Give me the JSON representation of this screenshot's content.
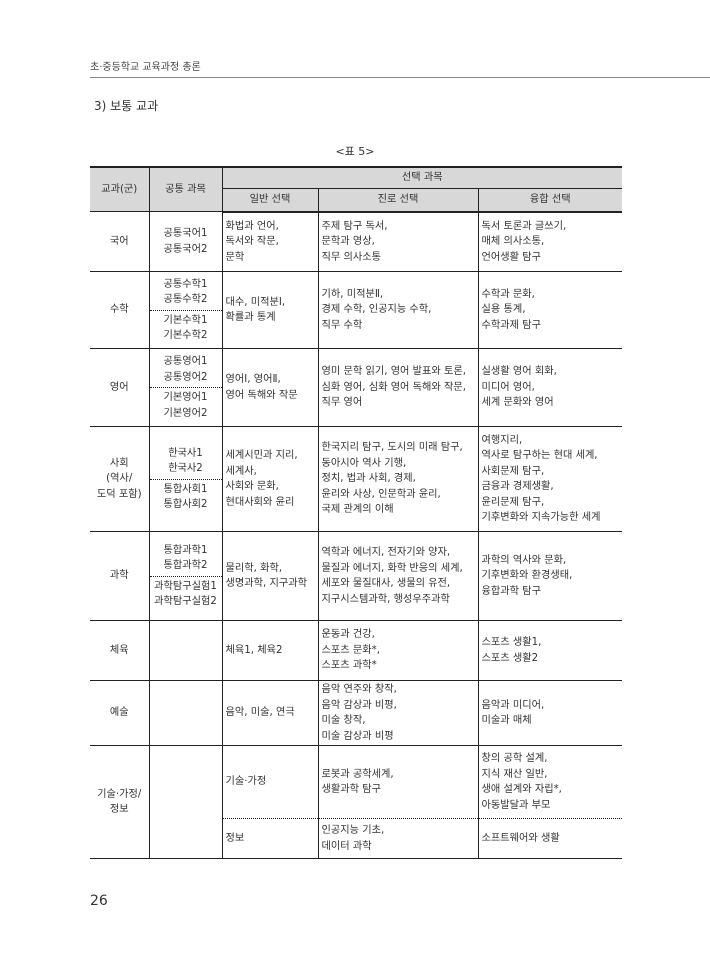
{
  "running_header": "초·중등학교 교육과정 총론",
  "section_title": "3) 보통 교과",
  "table_caption": "<표 5>",
  "table": {
    "headers": {
      "subject": "교과(군)",
      "common": "공통 과목",
      "elective": "선택 과목",
      "general": "일반 선택",
      "career": "진로 선택",
      "fusion": "융합 선택"
    },
    "rows": [
      {
        "subject": [
          "국어"
        ],
        "common": [
          [
            "공통국어1",
            "공통국어2"
          ]
        ],
        "general": [
          "화법과 언어,",
          "독서와 작문,",
          "문학"
        ],
        "career": [
          "주제 탐구 독서,",
          "문학과 영상,",
          "직무 의사소통"
        ],
        "fusion": [
          "독서 토론과 글쓰기,",
          "매체 의사소통,",
          "언어생활 탐구"
        ]
      },
      {
        "subject": [
          "수학"
        ],
        "common": [
          [
            "공통수학1",
            "공통수학2"
          ],
          [
            "기본수학1",
            "기본수학2"
          ]
        ],
        "general": [
          "대수, 미적분Ⅰ,",
          "확률과 통계"
        ],
        "career": [
          "기하, 미적분Ⅱ,",
          "경제 수학, 인공지능 수학,",
          "직무 수학"
        ],
        "fusion": [
          "수학과 문화,",
          "실용 통계,",
          "수학과제 탐구"
        ]
      },
      {
        "subject": [
          "영어"
        ],
        "common": [
          [
            "공통영어1",
            "공통영어2"
          ],
          [
            "기본영어1",
            "기본영어2"
          ]
        ],
        "general": [
          "영어Ⅰ, 영어Ⅱ,",
          "영어 독해와 작문"
        ],
        "career": [
          "영미 문학 읽기, 영어 발표와 토론,",
          "심화 영어, 심화 영어 독해와 작문,",
          "직무 영어"
        ],
        "fusion": [
          "실생활 영어 회화,",
          "미디어 영어,",
          "세계 문화와 영어"
        ]
      },
      {
        "subject": [
          "사회",
          "(역사/",
          "도덕 포함)"
        ],
        "common": [
          [
            "한국사1",
            "한국사2"
          ],
          [
            "통합사회1",
            "통합사회2"
          ]
        ],
        "general": [
          "세계시민과 지리,",
          "세계사,",
          "사회와 문화,",
          "현대사회와 윤리"
        ],
        "career": [
          "한국지리 탐구, 도시의 미래 탐구,",
          "동아시아 역사 기행,",
          "정치, 법과 사회, 경제,",
          "윤리와 사상, 인문학과 윤리,",
          "국제 관계의 이해"
        ],
        "fusion": [
          "여행지리,",
          "역사로 탐구하는 현대 세계,",
          "사회문제 탐구,",
          "금융과 경제생활,",
          "윤리문제 탐구,",
          "기후변화와 지속가능한 세계"
        ]
      },
      {
        "subject": [
          "과학"
        ],
        "common": [
          [
            "통합과학1",
            "통합과학2"
          ],
          [
            "과학탐구실험1",
            "과학탐구실험2"
          ]
        ],
        "general": [
          "물리학, 화학,",
          "생명과학, 지구과학"
        ],
        "career": [
          "역학과 에너지, 전자기와 양자,",
          "물질과 에너지, 화학 반응의 세계,",
          "세포와 물질대사, 생물의 유전,",
          "지구시스템과학, 행성우주과학"
        ],
        "fusion": [
          "과학의 역사와 문화,",
          "기후변화와 환경생태,",
          "융합과학 탐구"
        ]
      },
      {
        "subject": [
          "체육"
        ],
        "common": [],
        "general": [
          "체육1, 체육2"
        ],
        "career": [
          "운동과 건강,",
          "스포츠 문화*,",
          "스포츠 과학*"
        ],
        "fusion": [
          "스포츠 생활1,",
          "스포츠 생활2"
        ]
      },
      {
        "subject": [
          "예술"
        ],
        "common": [],
        "general": [
          "음악, 미술, 연극"
        ],
        "career": [
          "음악 연주와 창작,",
          "음악 감상과 비평,",
          "미술 창작,",
          "미술 감상과 비평"
        ],
        "fusion": [
          "음악과 미디어,",
          "미술과 매체"
        ]
      },
      {
        "subject": [
          "기술·가정/",
          "정보"
        ],
        "common": [],
        "sub": [
          {
            "general": [
              "기술·가정"
            ],
            "career": [
              "로봇과 공학세계,",
              "생활과학 탐구"
            ],
            "fusion": [
              "창의 공학 설계,",
              "지식 재산 일반,",
              "생애 설계와 자립*,",
              "아동발달과 부모"
            ]
          },
          {
            "general": [
              "정보"
            ],
            "career": [
              "인공지능 기초,",
              "데이터 과학"
            ],
            "fusion": [
              "소프트웨어와 생활"
            ]
          }
        ]
      }
    ]
  },
  "page_number": "26"
}
